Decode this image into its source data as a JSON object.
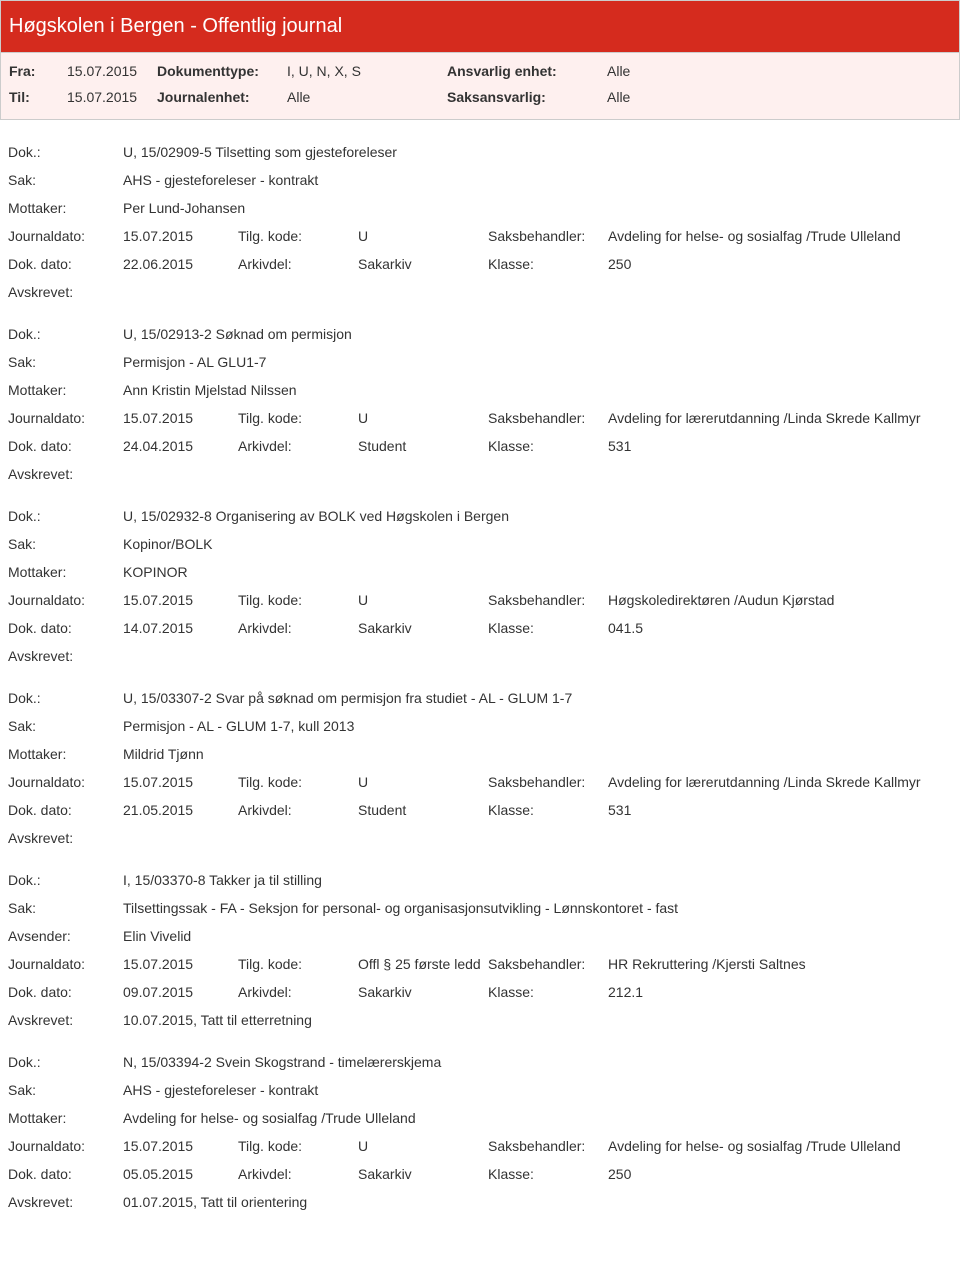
{
  "header": {
    "title": "Høgskolen i Bergen - Offentlig journal",
    "fra_lbl": "Fra:",
    "fra_val": "15.07.2015",
    "til_lbl": "Til:",
    "til_val": "15.07.2015",
    "dokumenttype_lbl": "Dokumenttype:",
    "dokumenttype_val": "I, U, N, X, S",
    "journalenhet_lbl": "Journalenhet:",
    "journalenhet_val": "Alle",
    "ansvarlig_lbl": "Ansvarlig enhet:",
    "ansvarlig_val": "Alle",
    "saksansvarlig_lbl": "Saksansvarlig:",
    "saksansvarlig_val": "Alle"
  },
  "labels": {
    "dok": "Dok.:",
    "sak": "Sak:",
    "mottaker": "Mottaker:",
    "avsender": "Avsender:",
    "journaldato": "Journaldato:",
    "tilgkode": "Tilg. kode:",
    "saksbehandler": "Saksbehandler:",
    "dokdato": "Dok. dato:",
    "arkivdel": "Arkivdel:",
    "klasse": "Klasse:",
    "avskrevet": "Avskrevet:"
  },
  "entries": [
    {
      "dok": "U, 15/02909-5 Tilsetting som gjesteforeleser",
      "sak": "AHS - gjesteforeleser - kontrakt",
      "party_lbl": "Mottaker:",
      "party": "Per Lund-Johansen",
      "journaldato": "15.07.2015",
      "tilgkode": "U",
      "saksbehandler": "Avdeling for helse- og sosialfag /Trude Ulleland",
      "dokdato": "22.06.2015",
      "arkivdel": "Sakarkiv",
      "klasse": "250",
      "avskrevet": ""
    },
    {
      "dok": "U, 15/02913-2 Søknad om permisjon",
      "sak": "Permisjon - AL GLU1-7",
      "party_lbl": "Mottaker:",
      "party": "Ann Kristin Mjelstad Nilssen",
      "journaldato": "15.07.2015",
      "tilgkode": "U",
      "saksbehandler": "Avdeling for lærerutdanning /Linda Skrede Kallmyr",
      "dokdato": "24.04.2015",
      "arkivdel": "Student",
      "klasse": "531",
      "avskrevet": ""
    },
    {
      "dok": "U, 15/02932-8 Organisering av BOLK ved Høgskolen i Bergen",
      "sak": "Kopinor/BOLK",
      "party_lbl": "Mottaker:",
      "party": "KOPINOR",
      "journaldato": "15.07.2015",
      "tilgkode": "U",
      "saksbehandler": "Høgskoledirektøren /Audun Kjørstad",
      "dokdato": "14.07.2015",
      "arkivdel": "Sakarkiv",
      "klasse": "041.5",
      "avskrevet": ""
    },
    {
      "dok": "U, 15/03307-2 Svar på søknad om permisjon fra studiet - AL - GLUM 1-7",
      "sak": "Permisjon - AL - GLUM 1-7, kull 2013",
      "party_lbl": "Mottaker:",
      "party": "Mildrid Tjønn",
      "journaldato": "15.07.2015",
      "tilgkode": "U",
      "saksbehandler": "Avdeling for lærerutdanning /Linda Skrede Kallmyr",
      "dokdato": "21.05.2015",
      "arkivdel": "Student",
      "klasse": "531",
      "avskrevet": ""
    },
    {
      "dok": "I, 15/03370-8 Takker ja til stilling",
      "sak": "Tilsettingssak - FA - Seksjon for personal- og organisasjonsutvikling - Lønnskontoret - fast",
      "party_lbl": "Avsender:",
      "party": "Elin Vivelid",
      "journaldato": "15.07.2015",
      "tilgkode": "Offl § 25 første ledd",
      "saksbehandler": "HR Rekruttering /Kjersti Saltnes",
      "dokdato": "09.07.2015",
      "arkivdel": "Sakarkiv",
      "klasse": "212.1",
      "avskrevet": "10.07.2015, Tatt til etterretning"
    },
    {
      "dok": "N, 15/03394-2 Svein Skogstrand - timelærerskjema",
      "sak": "AHS - gjesteforeleser - kontrakt",
      "party_lbl": "Mottaker:",
      "party": "Avdeling for helse- og sosialfag /Trude Ulleland",
      "journaldato": "15.07.2015",
      "tilgkode": "U",
      "saksbehandler": "Avdeling for helse- og sosialfag /Trude Ulleland",
      "dokdato": "05.05.2015",
      "arkivdel": "Sakarkiv",
      "klasse": "250",
      "avskrevet": "01.07.2015, Tatt til orientering"
    }
  ]
}
